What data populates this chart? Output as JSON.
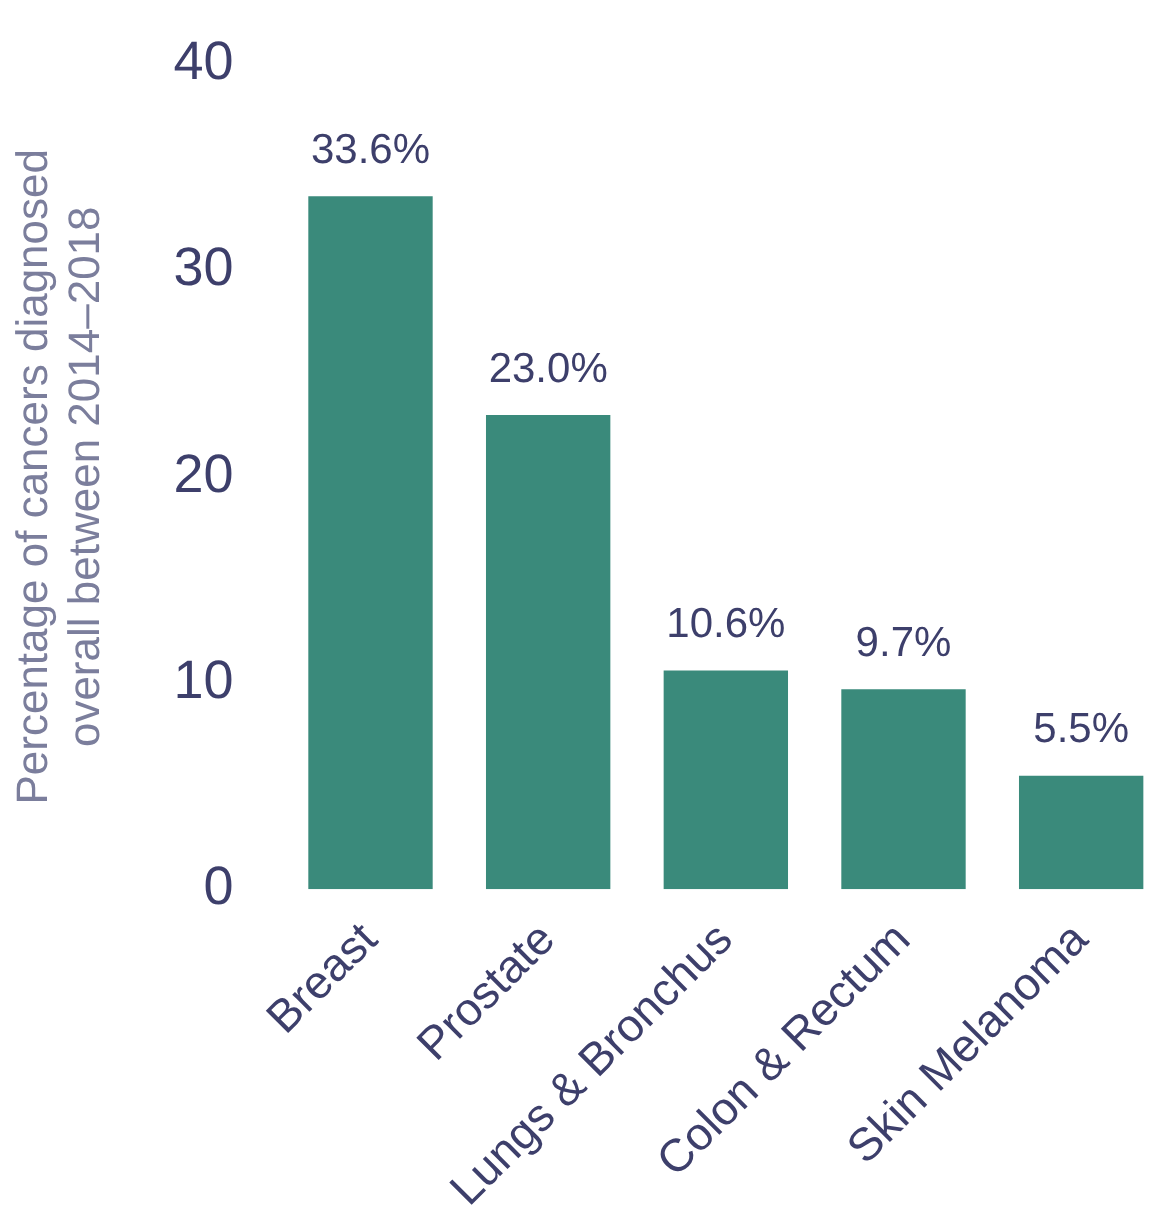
{
  "chart_data": {
    "type": "bar",
    "ylabel": "Percentage of cancers diagnosed\noverall between 2014–2018",
    "categories": [
      "Breast",
      "Prostate",
      "Lungs & Bronchus",
      "Colon & Rectum",
      "Skin Melanoma"
    ],
    "values": [
      33.6,
      23.0,
      10.6,
      9.7,
      5.5
    ],
    "value_labels": [
      "33.6%",
      "23.0%",
      "10.6%",
      "9.7%",
      "5.5%"
    ],
    "color": "#3a8a7b",
    "ylim": [
      0,
      40
    ],
    "yticks": [
      0,
      10,
      20,
      30,
      40
    ],
    "grid": false,
    "legend": false
  }
}
